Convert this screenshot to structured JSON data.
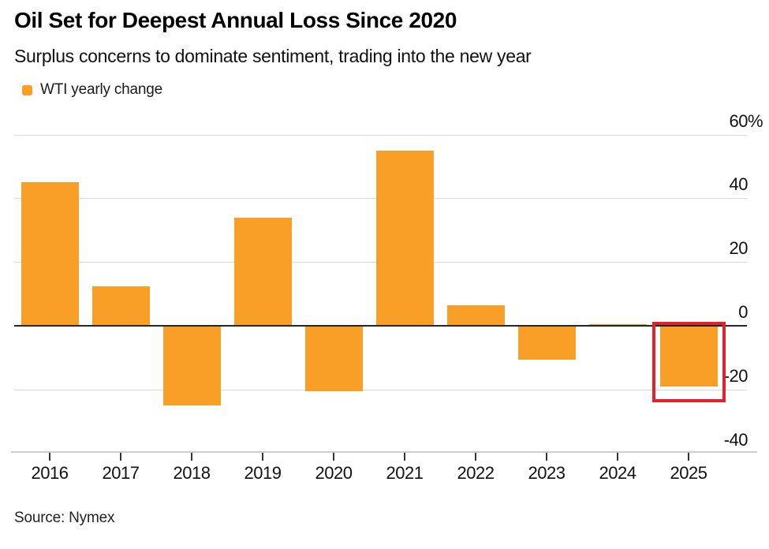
{
  "header": {
    "title": "Oil Set for Deepest Annual Loss Since 2020",
    "subtitle": "Surplus concerns to dominate sentiment, trading into the new year",
    "legend": {
      "label": "WTI yearly change",
      "swatch_color": "#f99e27"
    }
  },
  "chart_data": {
    "type": "bar",
    "title": "Oil Set for Deepest Annual Loss Since 2020",
    "subtitle": "Surplus concerns to dominate sentiment, trading into the new year",
    "series_name": "WTI yearly change",
    "unit": "%",
    "categories": [
      "2016",
      "2017",
      "2018",
      "2019",
      "2020",
      "2021",
      "2022",
      "2023",
      "2024",
      "2025"
    ],
    "values": [
      45,
      12.5,
      -25,
      34,
      -20.5,
      55,
      6.5,
      -10.7,
      0.1,
      -19
    ],
    "ylim": [
      -40,
      64
    ],
    "yticks": [
      {
        "value": 60,
        "label": "60%"
      },
      {
        "value": 40,
        "label": "40"
      },
      {
        "value": 20,
        "label": "20"
      },
      {
        "value": 0,
        "label": "0"
      },
      {
        "value": -20,
        "label": "-20"
      },
      {
        "value": -40,
        "label": "-40"
      }
    ],
    "grid": "horizontal",
    "legend_position": "top-left",
    "bar_color": "#f99e27",
    "zero_line_color": "#262626",
    "gridline_color": "#d9d9d9",
    "highlight": {
      "category": "2025",
      "box_color": "#e2232b"
    }
  },
  "footer": {
    "source": "Source: Nymex"
  }
}
